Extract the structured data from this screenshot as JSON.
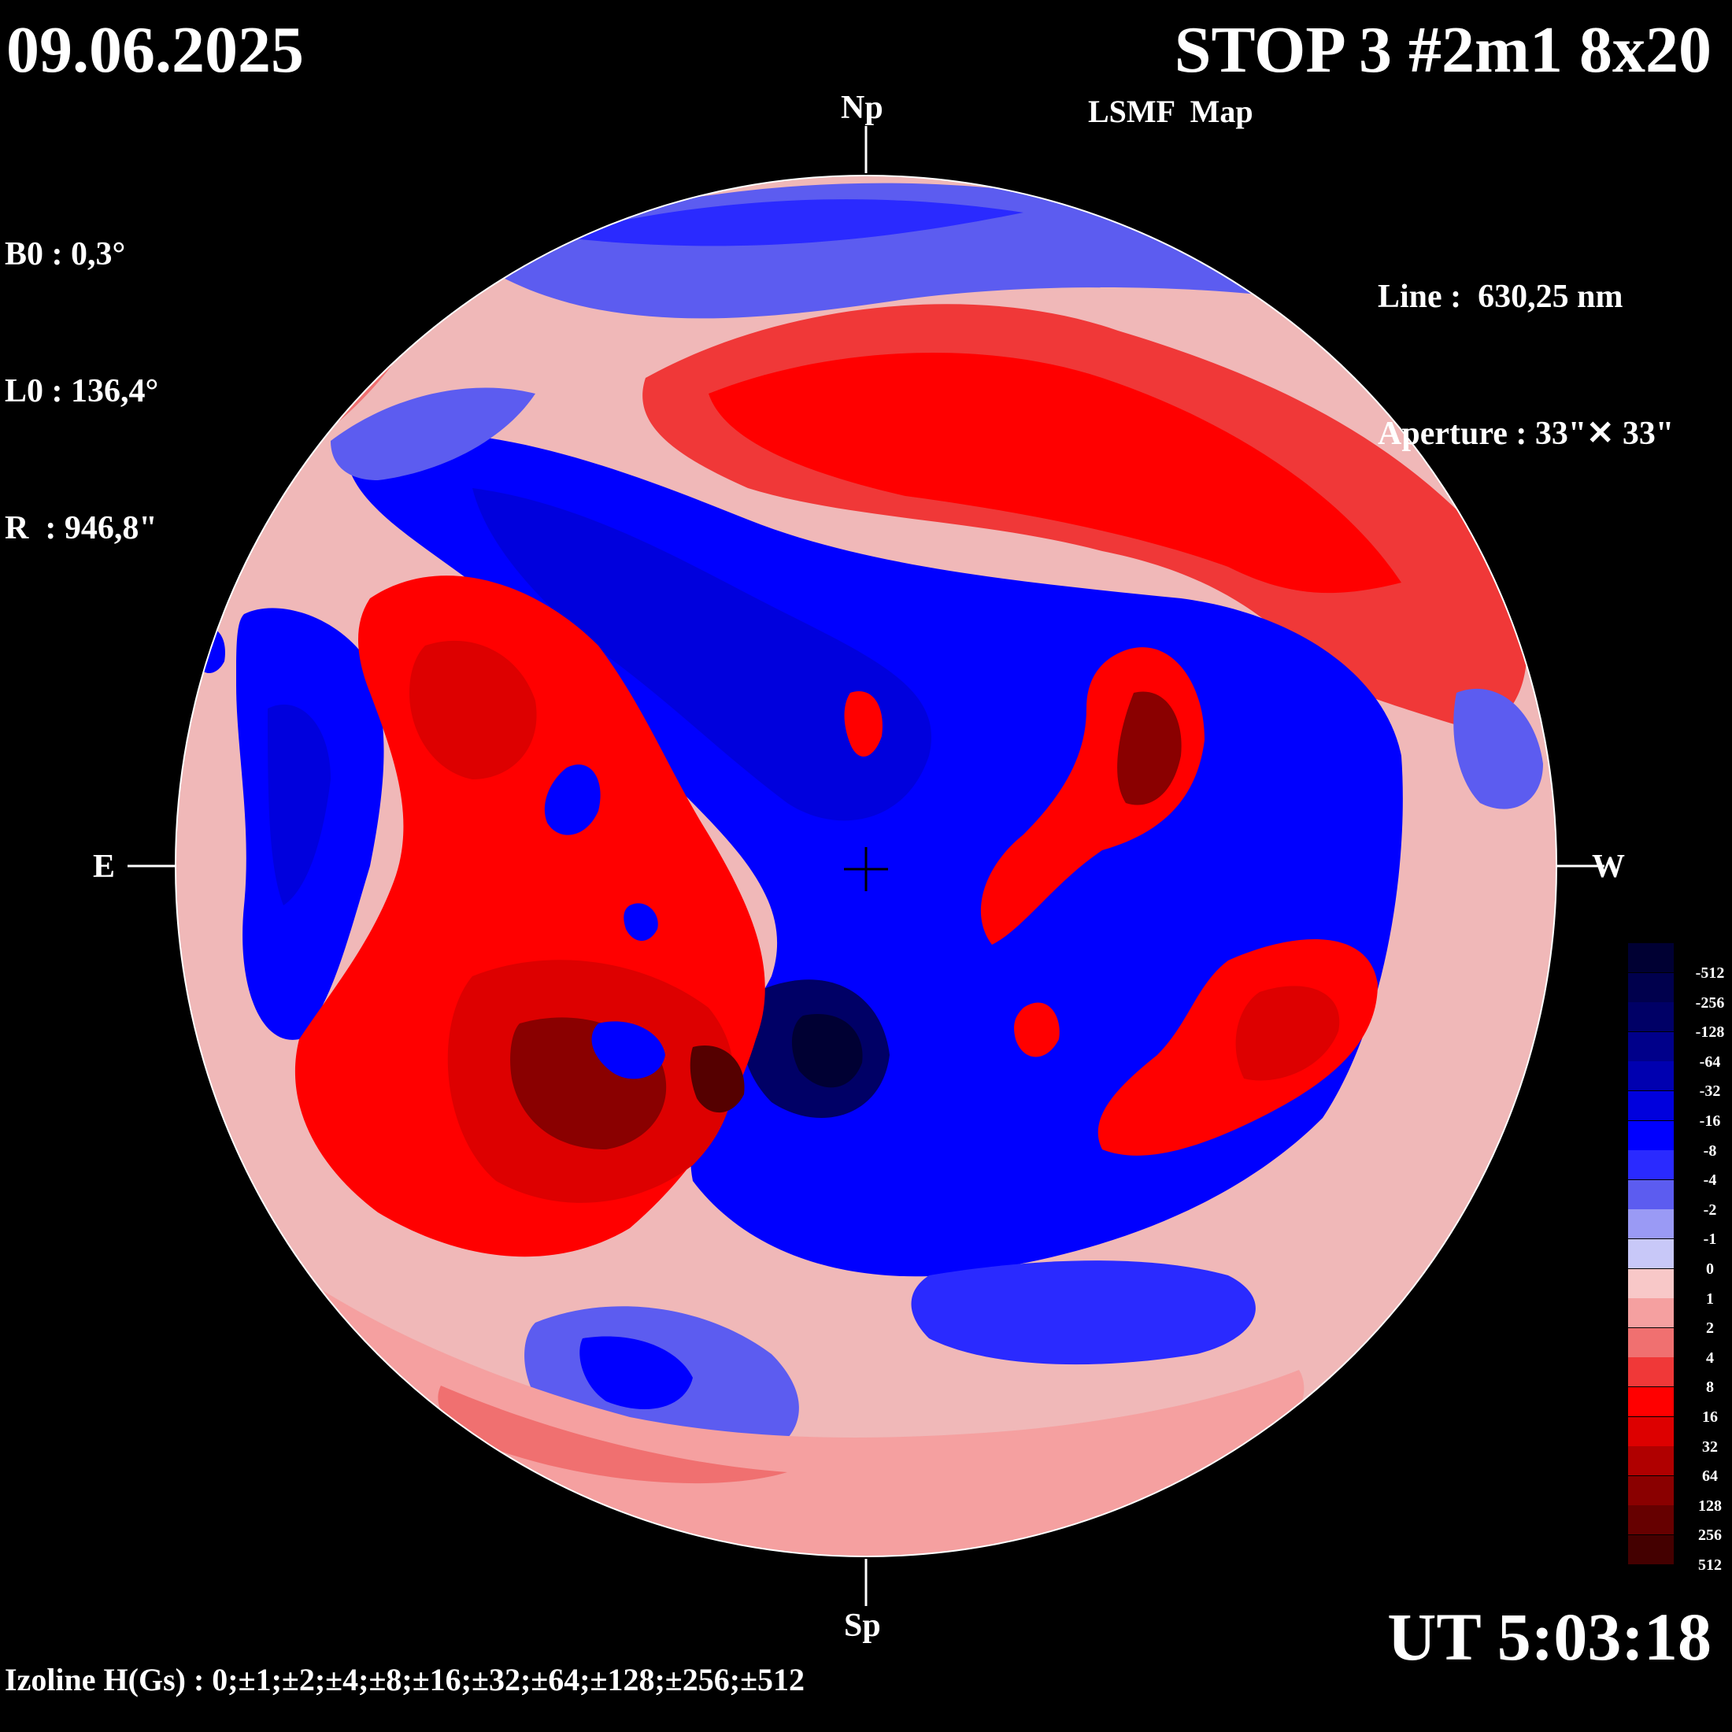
{
  "header": {
    "date": "09.06.2025",
    "title": "STOP 3 #2m1 8x20",
    "subtitle": "LSMF  Map"
  },
  "solar_params": {
    "b0": "B0 : 0,3°",
    "l0": "L0 : 136,4°",
    "r": "R  : 946,8\""
  },
  "instrument": {
    "line": "Line :  630,25 nm",
    "aperture": "Aperture : 33\"✕ 33\""
  },
  "directions": {
    "north": "Np",
    "south": "Sp",
    "east": "E",
    "west": "W"
  },
  "time": "UT 5:03:18",
  "izoline": "Izoline H(Gs) : 0;±1;±2;±4;±8;±16;±32;±64;±128;±256;±512",
  "legend": {
    "labels": [
      "-512",
      "-256",
      "-128",
      "-64",
      "-32",
      "-16",
      "-8",
      "-4",
      "-2",
      "-1",
      "0",
      "1",
      "2",
      "4",
      "8",
      "16",
      "32",
      "64",
      "128",
      "256",
      "512"
    ],
    "colors": [
      "#000033",
      "#00004d",
      "#000066",
      "#00008a",
      "#0000b0",
      "#0000dd",
      "#0000ff",
      "#2a2aff",
      "#5c5cf0",
      "#9a9af5",
      "#c8c8f8",
      "#f8c8c8",
      "#f5a0a0",
      "#f07070",
      "#f03838",
      "#ff0000",
      "#dd0000",
      "#b00000",
      "#8a0000",
      "#660000",
      "#440000"
    ]
  },
  "colors": {
    "background": "#000000",
    "positive": "#ff0000",
    "negative": "#0000ff",
    "neutral": "#f2dede"
  }
}
